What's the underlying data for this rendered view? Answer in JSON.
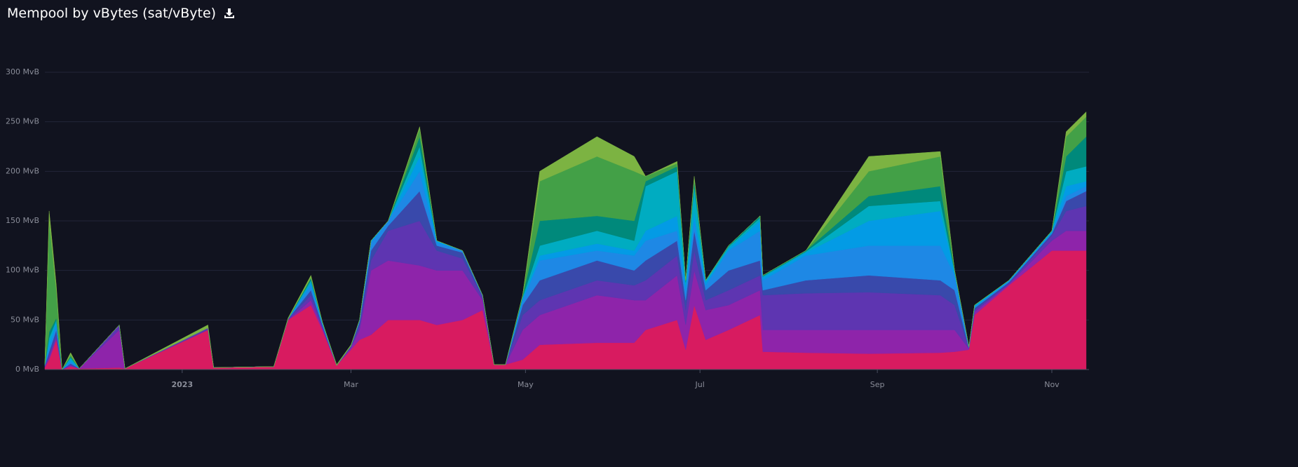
{
  "chart_data": {
    "type": "stacked-area",
    "title": "Mempool by vBytes (sat/vByte)",
    "x": [
      0,
      1.5,
      4,
      6,
      9,
      12,
      26,
      28,
      57,
      59,
      80,
      85,
      93,
      97,
      102,
      107,
      110,
      114,
      120,
      131,
      137,
      146,
      153,
      157,
      161,
      167,
      173,
      193,
      206,
      210,
      221,
      224,
      227,
      231,
      239,
      250,
      251,
      266,
      288,
      313,
      318,
      323,
      325,
      337,
      352,
      357,
      364
    ],
    "xlim": [
      0,
      365
    ],
    "xticks": [
      {
        "value": 48,
        "label": "2023"
      },
      {
        "value": 107,
        "label": "Mar"
      },
      {
        "value": 168,
        "label": "May"
      },
      {
        "value": 229,
        "label": "Jul"
      },
      {
        "value": 291,
        "label": "Sep"
      },
      {
        "value": 352,
        "label": "Nov"
      }
    ],
    "ylim": [
      0,
      300
    ],
    "yticks": [
      {
        "value": 0,
        "label": "0 MvB"
      },
      {
        "value": 50,
        "label": "50 MvB"
      },
      {
        "value": 100,
        "label": "100 MvB"
      },
      {
        "value": 150,
        "label": "150 MvB"
      },
      {
        "value": 200,
        "label": "200 MvB"
      },
      {
        "value": 250,
        "label": "250 MvB"
      },
      {
        "value": 300,
        "label": "300 MvB"
      }
    ],
    "grid": true,
    "series": [
      {
        "color": "#d81b60",
        "values": [
          2,
          10,
          30,
          0,
          3,
          1,
          2,
          1,
          40,
          2,
          3,
          50,
          65,
          40,
          4,
          20,
          30,
          35,
          50,
          50,
          45,
          50,
          60,
          5,
          5,
          10,
          25,
          27,
          27,
          40,
          50,
          20,
          65,
          30,
          40,
          55,
          18,
          17,
          16,
          17,
          18,
          20,
          55,
          85,
          120,
          120,
          120
        ]
      },
      {
        "color": "#8e24aa",
        "values": [
          1,
          2,
          2,
          0,
          1,
          0,
          38,
          0,
          0,
          0,
          0,
          0,
          5,
          2,
          0,
          2,
          10,
          65,
          60,
          55,
          55,
          50,
          10,
          0,
          0,
          30,
          30,
          48,
          43,
          30,
          45,
          25,
          35,
          30,
          25,
          25,
          22,
          23,
          24,
          23,
          22,
          1,
          3,
          1,
          10,
          20,
          20
        ]
      },
      {
        "color": "#5e35b1",
        "values": [
          1,
          3,
          3,
          0,
          1,
          0,
          5,
          0,
          2,
          0,
          0,
          1,
          5,
          2,
          0,
          1,
          5,
          10,
          30,
          45,
          20,
          12,
          3,
          0,
          0,
          15,
          15,
          15,
          15,
          20,
          20,
          15,
          20,
          10,
          15,
          15,
          35,
          37,
          38,
          35,
          25,
          1,
          2,
          1,
          5,
          20,
          25
        ]
      },
      {
        "color": "#3949ab",
        "values": [
          0,
          3,
          5,
          0,
          1,
          0,
          0,
          0,
          0,
          0,
          0,
          0,
          5,
          1,
          0,
          1,
          3,
          10,
          5,
          30,
          5,
          6,
          1,
          0,
          0,
          10,
          20,
          20,
          15,
          20,
          15,
          10,
          20,
          10,
          20,
          15,
          5,
          13,
          17,
          15,
          15,
          0,
          2,
          1,
          2,
          10,
          15
        ]
      },
      {
        "color": "#1e88e5",
        "values": [
          1,
          4,
          5,
          0,
          2,
          0,
          0,
          0,
          0,
          0,
          0,
          0,
          5,
          1,
          0,
          0,
          2,
          8,
          5,
          20,
          3,
          2,
          1,
          0,
          0,
          5,
          20,
          10,
          15,
          20,
          10,
          10,
          10,
          5,
          20,
          30,
          10,
          25,
          30,
          35,
          15,
          1,
          1,
          1,
          1,
          5,
          5
        ]
      },
      {
        "color": "#039be5",
        "values": [
          0,
          6,
          3,
          0,
          2,
          0,
          0,
          0,
          0,
          0,
          0,
          0,
          3,
          1,
          0,
          0,
          0,
          2,
          0,
          15,
          2,
          0,
          0,
          0,
          0,
          2,
          5,
          7,
          5,
          10,
          15,
          5,
          10,
          3,
          2,
          10,
          3,
          3,
          25,
          35,
          3,
          0,
          1,
          1,
          1,
          10,
          5
        ]
      },
      {
        "color": "#00acc1",
        "values": [
          0,
          4,
          2,
          0,
          2,
          0,
          0,
          0,
          0,
          0,
          0,
          0,
          2,
          1,
          0,
          0,
          0,
          0,
          0,
          10,
          0,
          0,
          0,
          0,
          0,
          1,
          10,
          13,
          10,
          45,
          45,
          3,
          25,
          2,
          2,
          3,
          1,
          1,
          15,
          10,
          1,
          0,
          1,
          0,
          1,
          15,
          15
        ]
      },
      {
        "color": "#00897b",
        "values": [
          0,
          6,
          2,
          0,
          1,
          0,
          0,
          0,
          0,
          0,
          0,
          0,
          2,
          0,
          0,
          0,
          0,
          0,
          0,
          10,
          0,
          0,
          0,
          0,
          0,
          1,
          25,
          15,
          20,
          5,
          5,
          2,
          5,
          0,
          1,
          2,
          1,
          1,
          10,
          15,
          1,
          0,
          0,
          0,
          0,
          15,
          30
        ]
      },
      {
        "color": "#43a047",
        "values": [
          1,
          112,
          28,
          0,
          2,
          0,
          0,
          0,
          0,
          0,
          0,
          0,
          1,
          0,
          0,
          0,
          0,
          0,
          0,
          8,
          0,
          0,
          0,
          0,
          0,
          1,
          40,
          60,
          50,
          5,
          3,
          0,
          3,
          0,
          0,
          0,
          0,
          0,
          25,
          30,
          0,
          0,
          0,
          0,
          0,
          20,
          20
        ]
      },
      {
        "color": "#7cb342",
        "values": [
          0,
          10,
          5,
          0,
          2,
          0,
          0,
          0,
          3,
          0,
          0,
          1,
          2,
          0,
          1,
          1,
          0,
          0,
          0,
          2,
          0,
          0,
          0,
          0,
          0,
          0,
          10,
          20,
          15,
          0,
          2,
          0,
          2,
          0,
          0,
          0,
          0,
          0,
          15,
          5,
          0,
          0,
          0,
          0,
          0,
          5,
          5
        ]
      }
    ]
  }
}
